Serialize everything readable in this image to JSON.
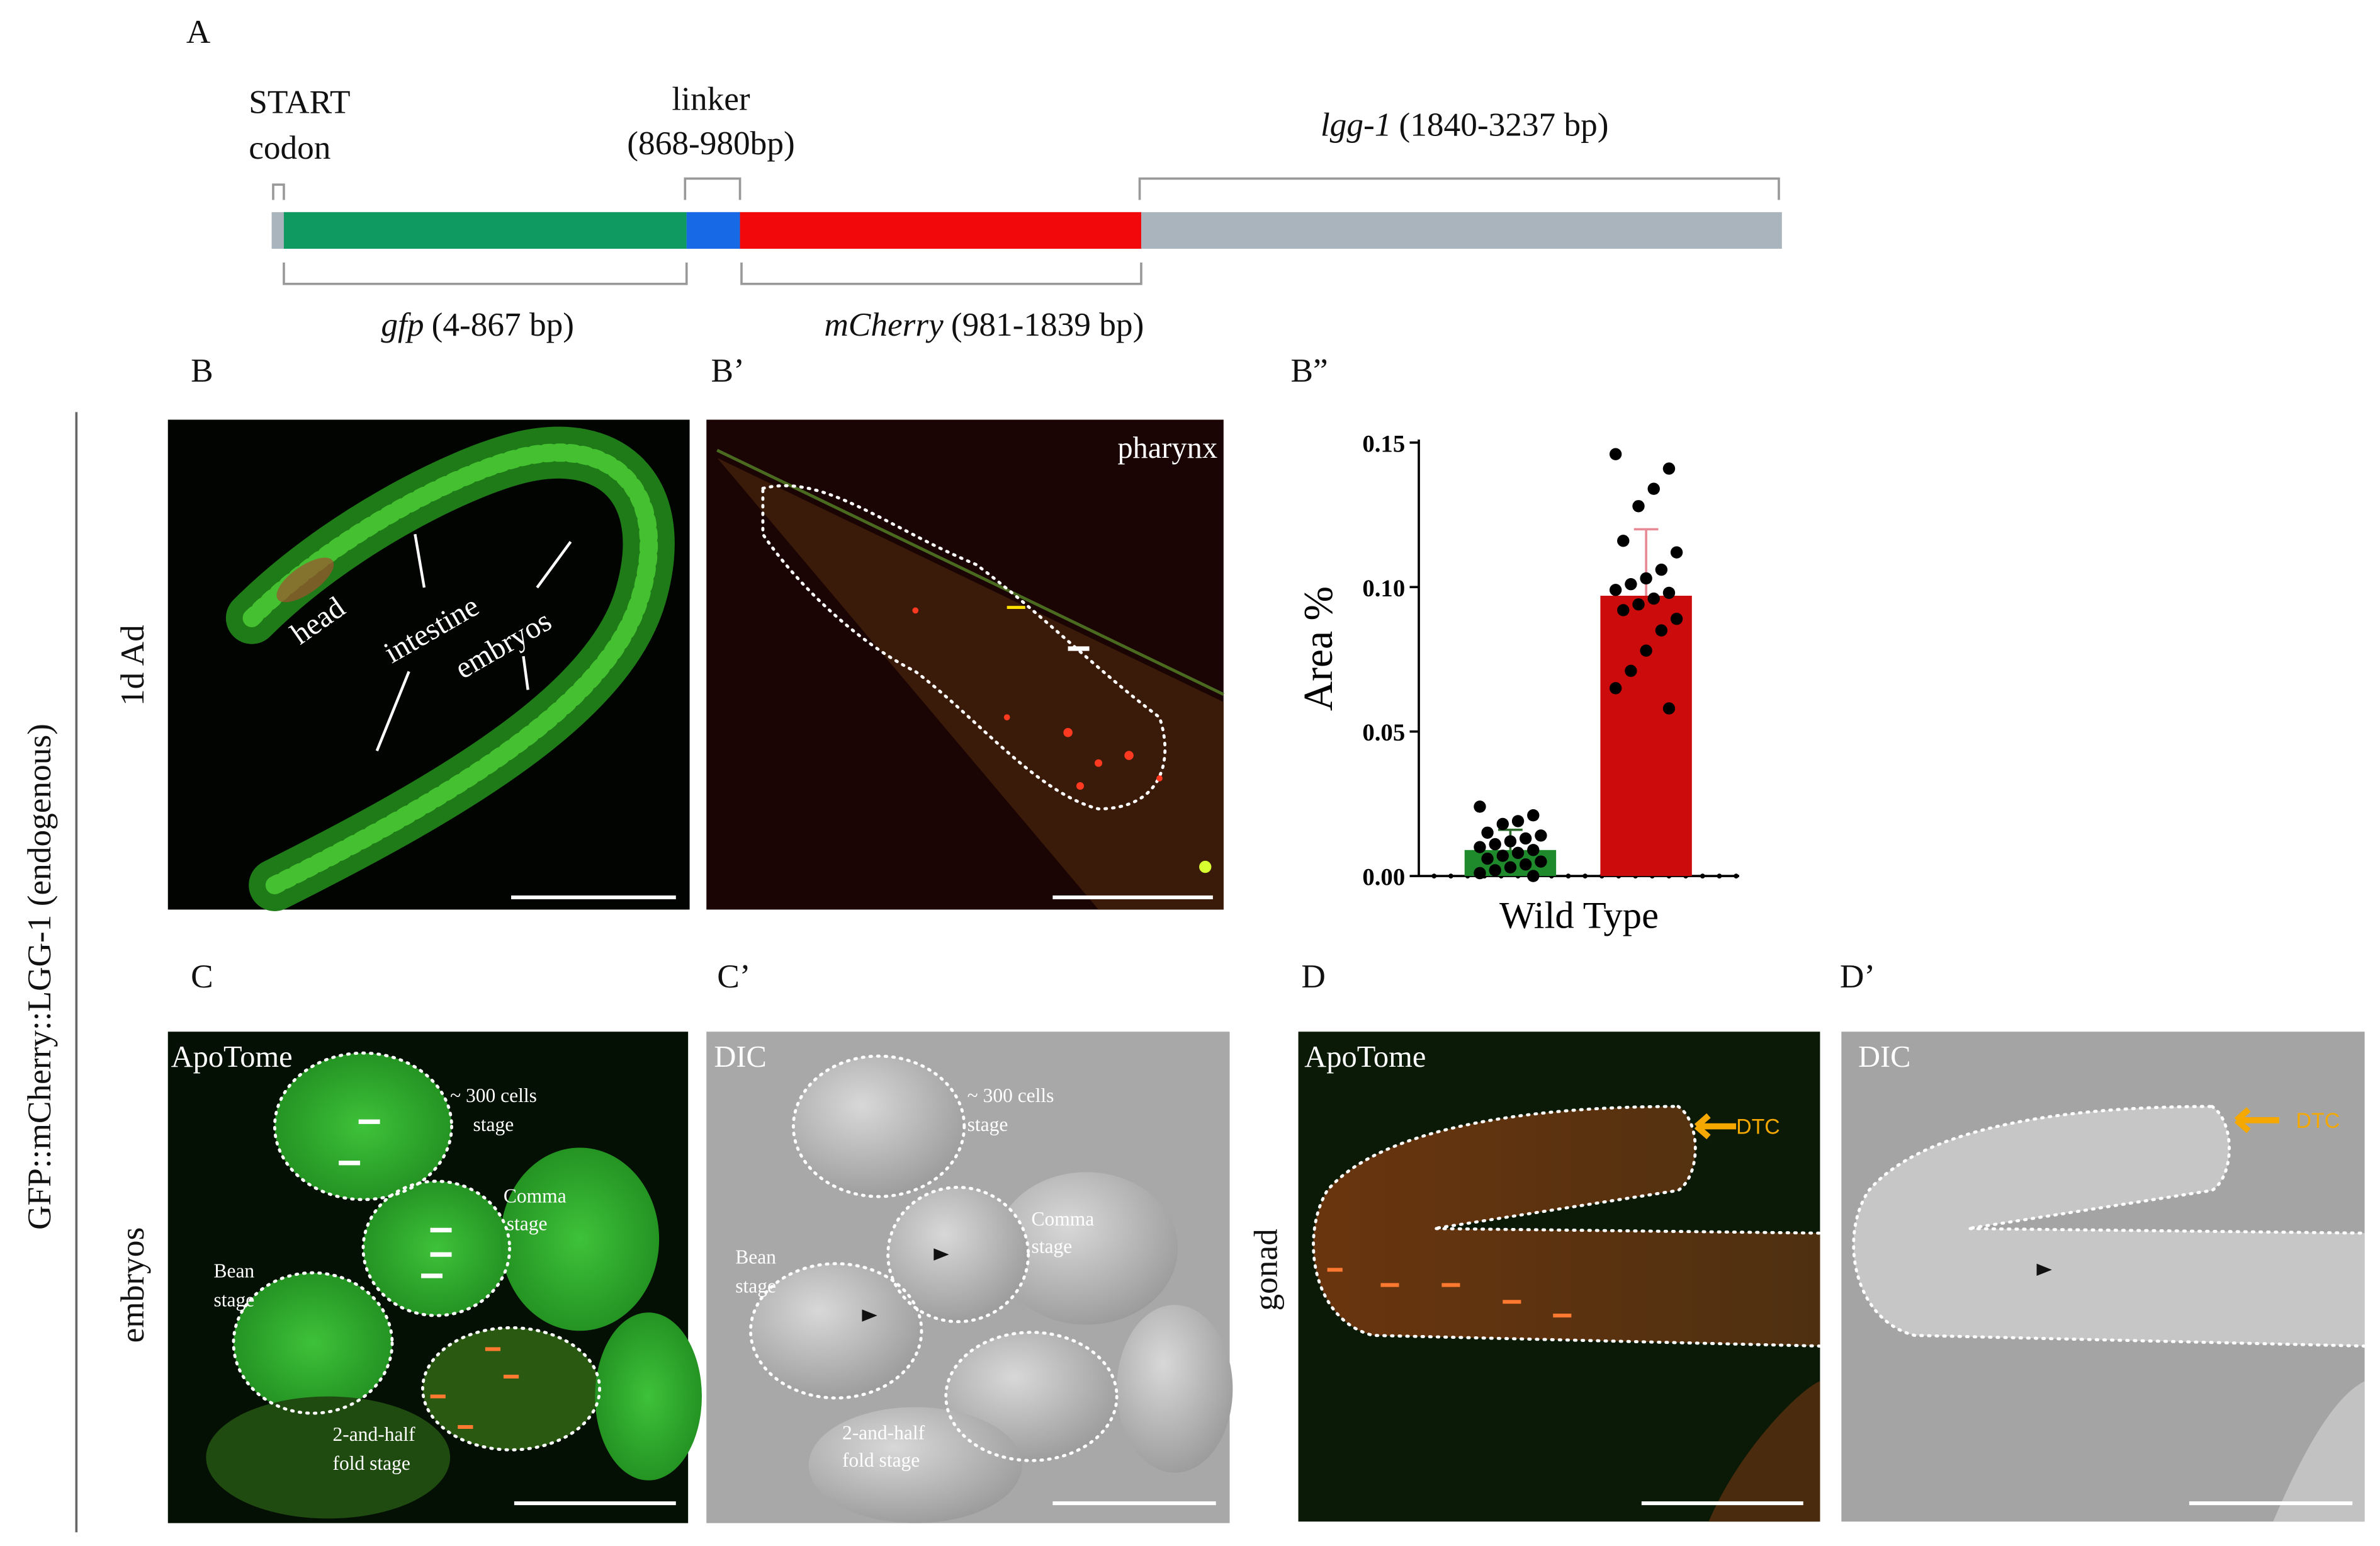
{
  "panel_labels": {
    "A": "A",
    "B": "B",
    "B_prime": "B’",
    "B_dprime": "B”",
    "C": "C",
    "C_prime": "C’",
    "D": "D",
    "D_prime": "D’"
  },
  "side_labels": {
    "construct": "GFP::mCherry::LGG-1 (endogenous)",
    "row1": "1d Ad",
    "row2_left": "embryos",
    "row2_right": "gonad"
  },
  "diagram": {
    "start_line1": "START",
    "start_line2": "codon",
    "linker_name": "linker",
    "linker_range": "(868-980bp)",
    "lgg1_gene": "lgg-1",
    "lgg1_range": "(1840-3237 bp)",
    "gfp_gene": "gfp",
    "gfp_range": "(4-867 bp)",
    "mcherry_gene": "mCherry",
    "mcherry_range": "(981-1839 bp)"
  },
  "images": {
    "B": {
      "labels": [
        "head",
        "intestine",
        "embryos"
      ]
    },
    "B_prime": {
      "label": "pharynx"
    },
    "C": {
      "method": "ApoTome",
      "stages": [
        {
          "line1": "~ 300 cells",
          "line2": "stage"
        },
        {
          "line1": "Comma",
          "line2": "stage"
        },
        {
          "line1": "Bean",
          "line2": "stage"
        },
        {
          "line1": "2-and-half",
          "line2": "fold stage"
        }
      ]
    },
    "C_prime": {
      "method": "DIC",
      "stages": [
        {
          "line1": "~ 300 cells",
          "line2": "stage"
        },
        {
          "line1": "Comma",
          "line2": "stage"
        },
        {
          "line1": "Bean",
          "line2": "stage"
        },
        {
          "line1": "2-and-half",
          "line2": "fold stage"
        }
      ]
    },
    "D": {
      "method": "ApoTome",
      "marker": "DTC"
    },
    "D_prime": {
      "method": "DIC",
      "marker": "DTC"
    }
  },
  "chart_data": {
    "type": "bar",
    "y_label": "Area %",
    "x_label": "Wild Type",
    "ylim": [
      0,
      0.15
    ],
    "yticks": [
      {
        "value": 0,
        "label": "0.00"
      },
      {
        "value": 0.05,
        "label": "0.05"
      },
      {
        "value": 0.1,
        "label": "0.10"
      },
      {
        "value": 0.15,
        "label": "0.15"
      }
    ],
    "bars": [
      {
        "color": "#1f8a2c",
        "error_color": "#2a6a2a",
        "value": 0.009,
        "error": 0.007,
        "points": [
          0.024,
          0.021,
          0.019,
          0.018,
          0.015,
          0.014,
          0.013,
          0.012,
          0.011,
          0.01,
          0.009,
          0.008,
          0.007,
          0.006,
          0.005,
          0.004,
          0.003,
          0.002,
          0.001,
          0.0
        ]
      },
      {
        "color": "#cc0c0c",
        "error_color": "#e88a96",
        "value": 0.097,
        "error": 0.023,
        "points": [
          0.146,
          0.141,
          0.134,
          0.128,
          0.116,
          0.112,
          0.106,
          0.103,
          0.101,
          0.099,
          0.098,
          0.096,
          0.094,
          0.092,
          0.089,
          0.085,
          0.078,
          0.071,
          0.065,
          0.058
        ]
      }
    ]
  }
}
